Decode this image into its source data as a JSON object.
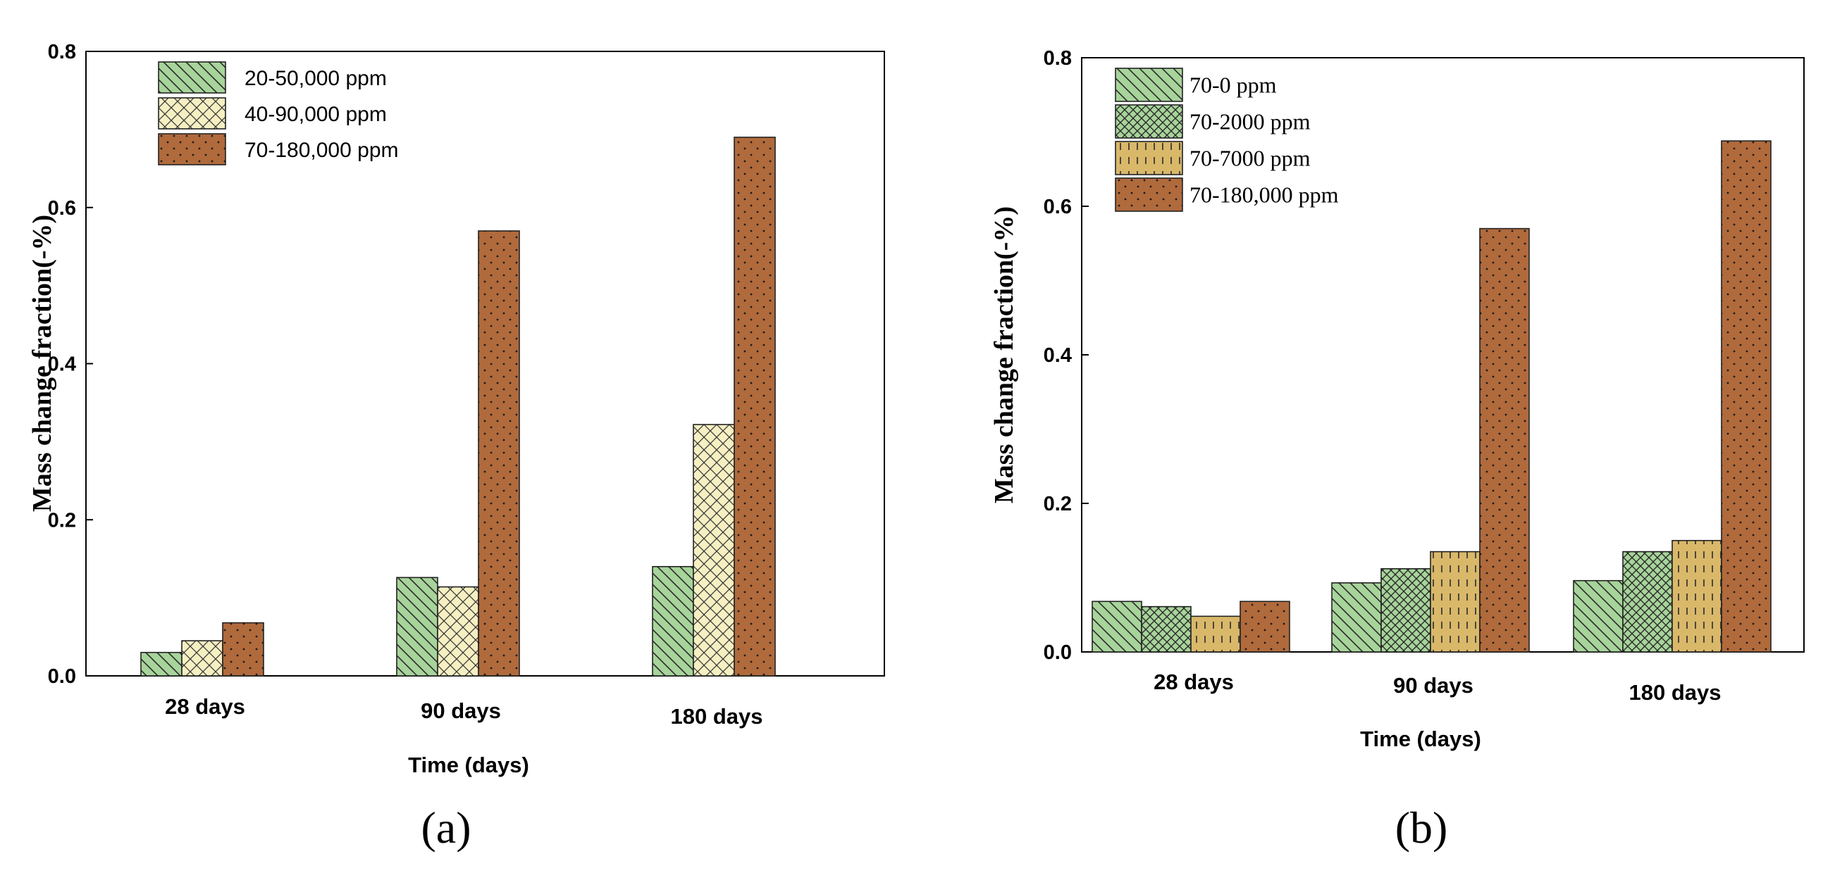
{
  "panel_labels": {
    "a": "(a)",
    "b": "(b)"
  },
  "colors": {
    "green": "#a7d49a",
    "cream": "#f6efc2",
    "tan": "#d9b86a",
    "brown": "#b06a3c",
    "axis": "#000000"
  },
  "chart_data": [
    {
      "type": "bar",
      "panel": "a",
      "title": "",
      "xlabel": "Time (days)",
      "ylabel": "Mass change fraction(-%)",
      "ylim": [
        0,
        0.8
      ],
      "yticks": [
        "0.0",
        "0.2",
        "0.4",
        "0.6",
        "0.8"
      ],
      "categories": [
        "28 days",
        "90 days",
        "180 days"
      ],
      "legend_position": "top-left",
      "series": [
        {
          "name": "20-50,000 ppm",
          "values": [
            0.03,
            0.126,
            0.14
          ],
          "fill": "green",
          "pattern": "diag"
        },
        {
          "name": "40-90,000 ppm",
          "values": [
            0.045,
            0.114,
            0.322
          ],
          "fill": "cream",
          "pattern": "cross"
        },
        {
          "name": "70-180,000 ppm",
          "values": [
            0.068,
            0.57,
            0.69
          ],
          "fill": "brown",
          "pattern": "dots"
        }
      ]
    },
    {
      "type": "bar",
      "panel": "b",
      "title": "",
      "xlabel": "Time (days)",
      "ylabel": "Mass change fraction(-%)",
      "ylim": [
        0,
        0.8
      ],
      "yticks": [
        "0.0",
        "0.2",
        "0.4",
        "0.6",
        "0.8"
      ],
      "categories": [
        "28 days",
        "90 days",
        "180 days"
      ],
      "legend_position": "top-left",
      "series": [
        {
          "name": "70-0 ppm",
          "values": [
            0.068,
            0.093,
            0.096
          ],
          "fill": "green",
          "pattern": "diag"
        },
        {
          "name": "70-2000 ppm",
          "values": [
            0.061,
            0.112,
            0.135
          ],
          "fill": "green",
          "pattern": "crossdot"
        },
        {
          "name": "70-7000 ppm",
          "values": [
            0.048,
            0.135,
            0.15
          ],
          "fill": "tan",
          "pattern": "dash"
        },
        {
          "name": "70-180,000 ppm",
          "values": [
            0.068,
            0.57,
            0.688
          ],
          "fill": "brown",
          "pattern": "dots"
        }
      ]
    }
  ]
}
